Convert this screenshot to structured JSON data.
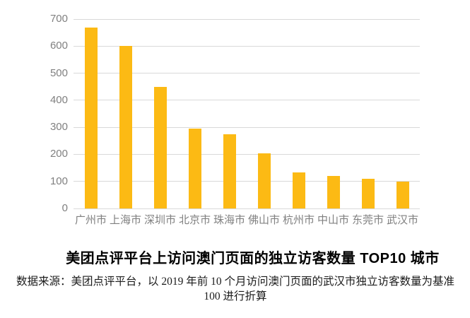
{
  "chart_data": {
    "type": "bar",
    "categories": [
      "广州市",
      "上海市",
      "深圳市",
      "北京市",
      "珠海市",
      "佛山市",
      "杭州市",
      "中山市",
      "东莞市",
      "武汉市"
    ],
    "values": [
      670,
      600,
      450,
      295,
      275,
      203,
      133,
      120,
      110,
      100
    ],
    "title": "美团点评平台上访问澳门页面的独立访客数量 TOP10 城市",
    "source_note": "数据来源：美团点评平台，以 2019 年前 10 个月访问澳门页面的武汉市独立访客数量为基准 100 进行折算",
    "xlabel": "",
    "ylabel": "",
    "ylim": [
      0,
      700
    ],
    "yticks": [
      0,
      100,
      200,
      300,
      400,
      500,
      600,
      700
    ],
    "grid": true,
    "legend": "none",
    "bar_color": "#FCBA14",
    "gridline_color": "#D9D9D9",
    "axis_label_color": "#808080",
    "title_color": "#000000",
    "source_color": "#1A1A1A"
  }
}
